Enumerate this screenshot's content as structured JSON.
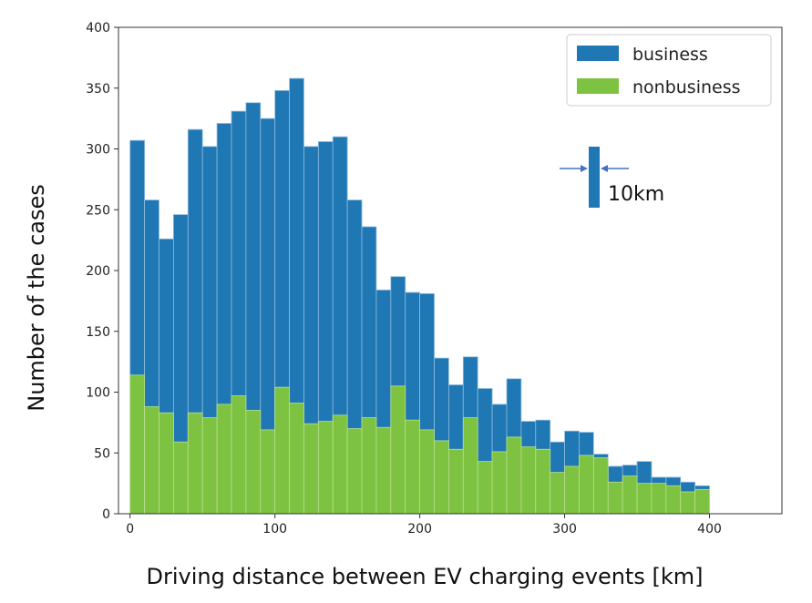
{
  "chart_data": {
    "type": "bar",
    "xlabel": "Driving distance between EV charging events [km]",
    "ylabel": "Number of the cases",
    "xlim": [
      -8,
      450
    ],
    "ylim": [
      0,
      400
    ],
    "xticks": [
      0,
      100,
      200,
      300,
      400
    ],
    "yticks": [
      0,
      50,
      100,
      150,
      200,
      250,
      300,
      350,
      400
    ],
    "bin_width_km": 10,
    "bin_starts": [
      0,
      10,
      20,
      30,
      40,
      50,
      60,
      70,
      80,
      90,
      100,
      110,
      120,
      130,
      140,
      150,
      160,
      170,
      180,
      190,
      200,
      210,
      220,
      230,
      240,
      250,
      260,
      270,
      280,
      290,
      300,
      310,
      320,
      330,
      340,
      350,
      360,
      370,
      380,
      390
    ],
    "series": [
      {
        "name": "business",
        "color": "#1f77b4",
        "values": [
          307,
          258,
          226,
          246,
          316,
          302,
          321,
          331,
          338,
          325,
          348,
          358,
          302,
          306,
          310,
          258,
          236,
          184,
          195,
          182,
          181,
          128,
          106,
          129,
          103,
          90,
          111,
          76,
          77,
          59,
          68,
          67,
          49,
          39,
          40,
          43,
          30,
          30,
          26,
          23
        ]
      },
      {
        "name": "nonbusiness",
        "color": "#7dc241",
        "values": [
          114,
          88,
          83,
          59,
          83,
          79,
          90,
          97,
          85,
          69,
          104,
          91,
          74,
          76,
          81,
          70,
          79,
          71,
          105,
          77,
          69,
          60,
          53,
          79,
          43,
          51,
          63,
          55,
          53,
          34,
          39,
          48,
          46,
          26,
          31,
          25,
          25,
          23,
          18,
          20
        ]
      }
    ],
    "legend": {
      "placement": "top-right"
    },
    "grid": false,
    "annotation": {
      "text": "10km",
      "represents": "one 10 km bin width"
    }
  }
}
